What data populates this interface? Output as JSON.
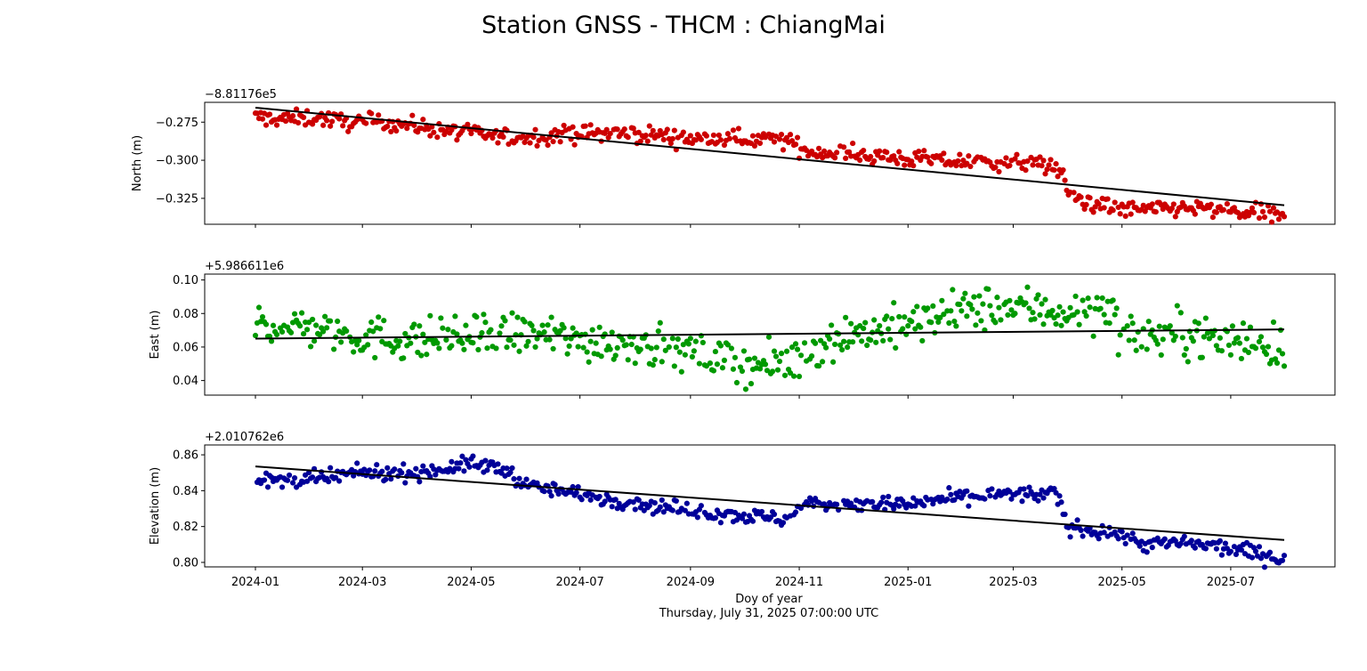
{
  "chart_data": {
    "type": "scatter",
    "title": "Station GNSS - THCM : ChiangMai",
    "xlabel": "Doy of year",
    "subtitle_bottom": "Thursday, July 31, 2025 07:00:00 UTC",
    "x_range": [
      "2024-01-01",
      "2025-07-31"
    ],
    "x_ticks": [
      {
        "label": "2024-01",
        "date": "2024-01-01"
      },
      {
        "label": "2024-03",
        "date": "2024-03-01"
      },
      {
        "label": "2024-05",
        "date": "2024-05-01"
      },
      {
        "label": "2024-07",
        "date": "2024-07-01"
      },
      {
        "label": "2024-09",
        "date": "2024-09-01"
      },
      {
        "label": "2024-11",
        "date": "2024-11-01"
      },
      {
        "label": "2025-01",
        "date": "2025-01-01"
      },
      {
        "label": "2025-03",
        "date": "2025-03-01"
      },
      {
        "label": "2025-05",
        "date": "2025-05-01"
      },
      {
        "label": "2025-07",
        "date": "2025-07-01"
      }
    ],
    "panels": [
      {
        "ylabel": "North (m)",
        "offset": "−8.81176e5",
        "color": "#cc0000",
        "trend_color": "#000000",
        "ylim": [
          -0.342,
          -0.262
        ],
        "yticks": [
          {
            "label": "−0.275",
            "value": -0.275
          },
          {
            "label": "−0.300",
            "value": -0.3
          },
          {
            "label": "−0.325",
            "value": -0.325
          }
        ],
        "trend": [
          {
            "x": "2024-01-01",
            "y": -0.2655
          },
          {
            "x": "2025-07-31",
            "y": -0.3295
          }
        ],
        "profile": [
          [
            "2024-01-01",
            -0.272
          ],
          [
            "2024-01-20",
            -0.273
          ],
          [
            "2024-02-05",
            -0.272
          ],
          [
            "2024-02-20",
            -0.275
          ],
          [
            "2024-03-15",
            -0.275
          ],
          [
            "2024-04-15",
            -0.28
          ],
          [
            "2024-05-10",
            -0.284
          ],
          [
            "2024-06-01",
            -0.285
          ],
          [
            "2024-06-20",
            -0.283
          ],
          [
            "2024-07-15",
            -0.282
          ],
          [
            "2024-08-10",
            -0.283
          ],
          [
            "2024-09-01",
            -0.286
          ],
          [
            "2024-10-05",
            -0.286
          ],
          [
            "2024-10-25",
            -0.287
          ],
          [
            "2024-11-05",
            -0.294
          ],
          [
            "2024-12-01",
            -0.296
          ],
          [
            "2025-01-01",
            -0.299
          ],
          [
            "2025-02-01",
            -0.301
          ],
          [
            "2025-03-15",
            -0.302
          ],
          [
            "2025-03-28",
            -0.307
          ],
          [
            "2025-04-01",
            -0.323
          ],
          [
            "2025-04-20",
            -0.33
          ],
          [
            "2025-05-10",
            -0.333
          ],
          [
            "2025-06-05",
            -0.331
          ],
          [
            "2025-06-25",
            -0.333
          ],
          [
            "2025-07-31",
            -0.337
          ]
        ],
        "noise": 0.0028
      },
      {
        "ylabel": "East (m)",
        "offset": "+5.986611e6",
        "color": "#009900",
        "trend_color": "#000000",
        "ylim": [
          0.0313,
          0.1035
        ],
        "yticks": [
          {
            "label": "0.04",
            "value": 0.04
          },
          {
            "label": "0.06",
            "value": 0.06
          },
          {
            "label": "0.08",
            "value": 0.08
          },
          {
            "label": "0.10",
            "value": 0.1
          }
        ],
        "trend": [
          {
            "x": "2024-01-01",
            "y": 0.065
          },
          {
            "x": "2025-07-31",
            "y": 0.0705
          }
        ],
        "profile": [
          [
            "2024-01-01",
            0.074
          ],
          [
            "2024-02-01",
            0.072
          ],
          [
            "2024-03-01",
            0.066
          ],
          [
            "2024-04-01",
            0.064
          ],
          [
            "2024-05-01",
            0.066
          ],
          [
            "2024-06-01",
            0.068
          ],
          [
            "2024-07-01",
            0.064
          ],
          [
            "2024-08-01",
            0.063
          ],
          [
            "2024-09-01",
            0.056
          ],
          [
            "2024-09-20",
            0.053
          ],
          [
            "2024-10-15",
            0.048
          ],
          [
            "2024-10-30",
            0.052
          ],
          [
            "2024-11-15",
            0.064
          ],
          [
            "2024-12-01",
            0.068
          ],
          [
            "2025-01-01",
            0.073
          ],
          [
            "2025-02-01",
            0.082
          ],
          [
            "2025-03-01",
            0.084
          ],
          [
            "2025-04-01",
            0.081
          ],
          [
            "2025-04-25",
            0.083
          ],
          [
            "2025-05-01",
            0.066
          ],
          [
            "2025-06-01",
            0.068
          ],
          [
            "2025-07-01",
            0.065
          ],
          [
            "2025-07-31",
            0.06
          ]
        ],
        "noise": 0.0065
      },
      {
        "ylabel": "Elevation (m)",
        "offset": "+2.010762e6",
        "color": "#000099",
        "trend_color": "#000000",
        "ylim": [
          0.7975,
          0.8655
        ],
        "yticks": [
          {
            "label": "0.80",
            "value": 0.8
          },
          {
            "label": "0.82",
            "value": 0.82
          },
          {
            "label": "0.84",
            "value": 0.84
          },
          {
            "label": "0.86",
            "value": 0.86
          }
        ],
        "trend": [
          {
            "x": "2024-01-01",
            "y": 0.8535
          },
          {
            "x": "2025-07-31",
            "y": 0.8125
          }
        ],
        "profile": [
          [
            "2024-01-01",
            0.845
          ],
          [
            "2024-02-01",
            0.846
          ],
          [
            "2024-03-01",
            0.85
          ],
          [
            "2024-04-01",
            0.85
          ],
          [
            "2024-05-01",
            0.855
          ],
          [
            "2024-05-20",
            0.852
          ],
          [
            "2024-06-01",
            0.843
          ],
          [
            "2024-07-01",
            0.838
          ],
          [
            "2024-08-01",
            0.833
          ],
          [
            "2024-09-01",
            0.829
          ],
          [
            "2024-10-01",
            0.826
          ],
          [
            "2024-10-28",
            0.824
          ],
          [
            "2024-11-01",
            0.832
          ],
          [
            "2024-12-01",
            0.833
          ],
          [
            "2025-01-01",
            0.832
          ],
          [
            "2025-02-01",
            0.837
          ],
          [
            "2025-03-01",
            0.838
          ],
          [
            "2025-03-25",
            0.838
          ],
          [
            "2025-04-01",
            0.82
          ],
          [
            "2025-04-25",
            0.817
          ],
          [
            "2025-05-15",
            0.81
          ],
          [
            "2025-06-01",
            0.811
          ],
          [
            "2025-07-01",
            0.808
          ],
          [
            "2025-07-31",
            0.802
          ]
        ],
        "noise": 0.0022
      }
    ]
  }
}
